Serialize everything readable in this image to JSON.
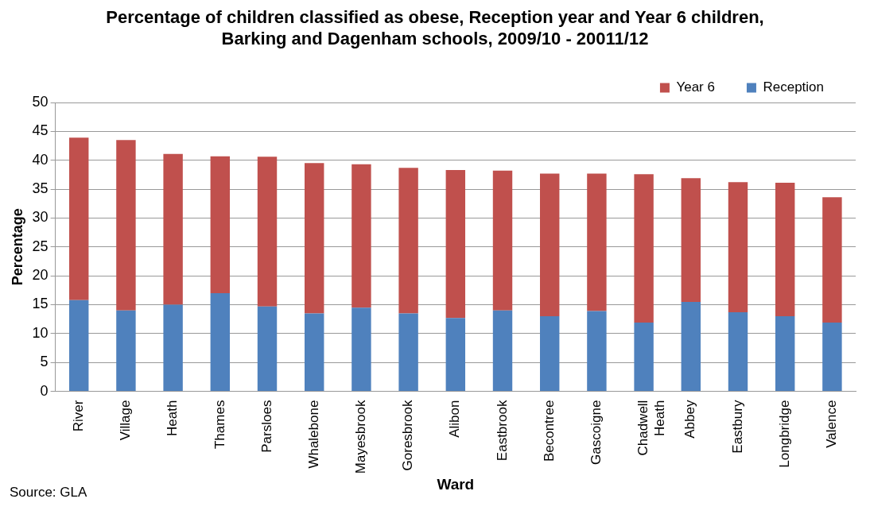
{
  "chart_data": {
    "type": "bar",
    "title": "Percentage of children classified as obese, Reception year and Year 6 children, Barking and Dagenham schools, 2009/10 - 20011/12",
    "xlabel": "Ward",
    "ylabel": "Percentage",
    "categories": [
      "River",
      "Village",
      "Heath",
      "Thames",
      "Parsloes",
      "Whalebone",
      "Mayesbrook",
      "Goresbrook",
      "Alibon",
      "Eastbrook",
      "Becontree",
      "Gascoigne",
      "Chadwell Heath",
      "Abbey",
      "Eastbury",
      "Longbridge",
      "Valence"
    ],
    "series": [
      {
        "name": "Reception",
        "color": "#4f81bd",
        "values": [
          15.8,
          14.0,
          15.0,
          17.0,
          14.7,
          13.5,
          14.5,
          13.5,
          12.7,
          14.0,
          13.0,
          13.9,
          11.9,
          15.5,
          13.7,
          13.0,
          11.9
        ]
      },
      {
        "name": "Year 6",
        "color": "#c0504d",
        "values": [
          28.1,
          29.5,
          26.1,
          23.7,
          25.9,
          26.0,
          24.8,
          25.2,
          25.6,
          24.2,
          24.7,
          23.8,
          25.7,
          21.4,
          22.5,
          23.1,
          21.7
        ]
      }
    ],
    "stacked": true,
    "ylim": [
      0,
      50
    ],
    "yticks": [
      0,
      5,
      10,
      15,
      20,
      25,
      30,
      35,
      40,
      45,
      50
    ],
    "grid": "y",
    "legend": "top right",
    "annotations": [
      "Source: GLA"
    ]
  }
}
